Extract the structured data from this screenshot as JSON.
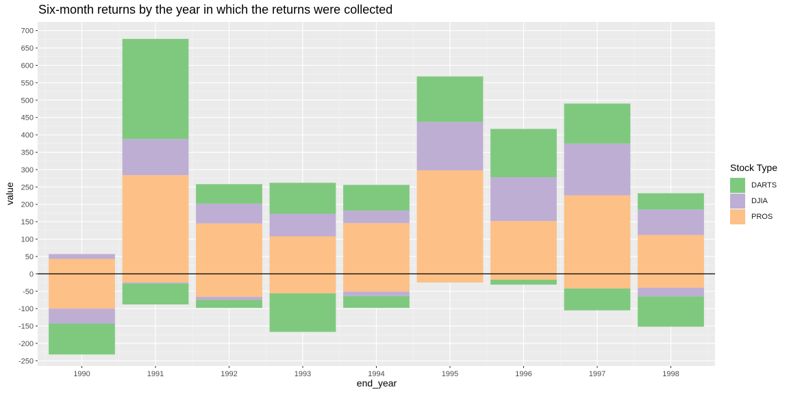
{
  "chart_data": {
    "type": "bar",
    "stacked": true,
    "diverging": true,
    "title": "Six-month returns by the year in which the returns were collected",
    "xlabel": "end_year",
    "ylabel": "value",
    "ylim": [
      -265,
      725
    ],
    "yticks": [
      -250,
      -200,
      -150,
      -100,
      -50,
      0,
      50,
      100,
      150,
      200,
      250,
      300,
      350,
      400,
      450,
      500,
      550,
      600,
      650,
      700
    ],
    "categories": [
      "1990",
      "1991",
      "1992",
      "1993",
      "1994",
      "1995",
      "1996",
      "1997",
      "1998"
    ],
    "legend_title": "Stock Type",
    "legend_position": "right",
    "grid": true,
    "series": [
      {
        "name": "PROS",
        "color": "#FDC086",
        "values": [
          -100,
          263,
          80,
          53,
          96,
          272,
          133,
          184,
          71
        ],
        "segments": [
          [
            [
              -100,
              43
            ]
          ],
          [
            [
              -25,
              284
            ]
          ],
          [
            [
              -66,
              145
            ]
          ],
          [
            [
              -56,
              108
            ]
          ],
          [
            [
              -51,
              146
            ]
          ],
          [
            [
              -25,
              298
            ]
          ],
          [
            [
              -17,
              152
            ]
          ],
          [
            [
              -42,
              226
            ]
          ],
          [
            [
              -40,
              112
            ]
          ]
        ]
      },
      {
        "name": "DJIA",
        "color": "#BEAED4",
        "values": [
          -29,
          100,
          46,
          65,
          24,
          139,
          126,
          149,
          48
        ],
        "segments": [
          [
            [
              -143,
              -100
            ],
            [
              43,
              57
            ]
          ],
          [
            [
              -28,
              -25
            ],
            [
              284,
              388
            ]
          ],
          [
            [
              -75,
              -66
            ],
            [
              145,
              202
            ]
          ],
          [
            [
              108,
              173
            ]
          ],
          [
            [
              -64,
              -51
            ],
            [
              146,
              182
            ]
          ],
          [
            [
              298,
              437
            ]
          ],
          [
            [
              -17,
              -17
            ],
            [
              152,
              278
            ]
          ],
          [
            [
              226,
              375
            ]
          ],
          [
            [
              -65,
              -40
            ],
            [
              112,
              185
            ]
          ]
        ]
      },
      {
        "name": "DARTS",
        "color": "#7FC97F",
        "values": [
          -89,
          228,
          33,
          -24,
          38,
          131,
          125,
          52,
          -42
        ],
        "segments": [
          [
            [
              -232,
              -143
            ]
          ],
          [
            [
              -88,
              -28
            ],
            [
              388,
              676
            ]
          ],
          [
            [
              -98,
              -75
            ],
            [
              202,
              258
            ]
          ],
          [
            [
              -167,
              -56
            ],
            [
              173,
              262
            ]
          ],
          [
            [
              -98,
              -64
            ],
            [
              182,
              256
            ]
          ],
          [
            [
              437,
              568
            ]
          ],
          [
            [
              -31,
              -17
            ],
            [
              278,
              417
            ]
          ],
          [
            [
              -105,
              -42
            ],
            [
              375,
              490
            ]
          ],
          [
            [
              -152,
              -65
            ],
            [
              185,
              232
            ]
          ]
        ]
      }
    ]
  }
}
